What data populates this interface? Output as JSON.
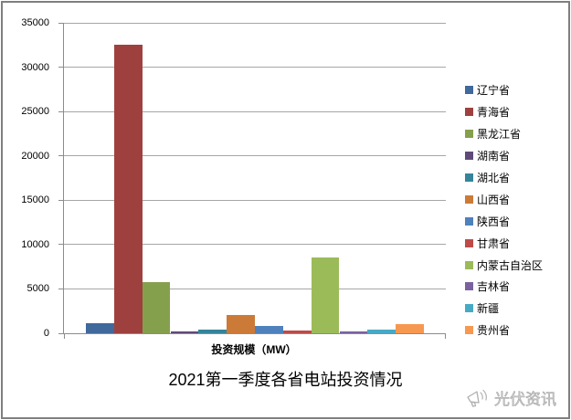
{
  "chart_data": {
    "type": "bar",
    "title": "2021第一季度各省电站投资情况",
    "xlabel": "投资规模（MW）",
    "ylabel": "",
    "categories": [
      "辽宁省",
      "青海省",
      "黑龙江省",
      "湖南省",
      "湖北省",
      "山西省",
      "陕西省",
      "甘肃省",
      "内蒙古自治区",
      "吉林省",
      "新疆",
      "贵州省"
    ],
    "values": [
      1100,
      32500,
      5800,
      250,
      400,
      2100,
      850,
      350,
      8500,
      180,
      450,
      1000
    ],
    "colors": [
      "#40699C",
      "#9E413E",
      "#85A04D",
      "#5F4A77",
      "#35849B",
      "#CC7A38",
      "#4F81BD",
      "#BE4B48",
      "#9BBB59",
      "#7A62A0",
      "#46AAC5",
      "#F79850"
    ],
    "ylim": [
      0,
      35000
    ],
    "yticks": [
      0,
      5000,
      10000,
      15000,
      20000,
      25000,
      30000,
      35000
    ],
    "grid": true,
    "legend_position": "right"
  },
  "watermark": {
    "label": "光伏资讯",
    "icon": "megaphone-icon"
  },
  "frame": {
    "border_color": "#7f7f7f",
    "axis_line_color": "#8c8c8c",
    "gridline_color": "#a6a6a6"
  }
}
